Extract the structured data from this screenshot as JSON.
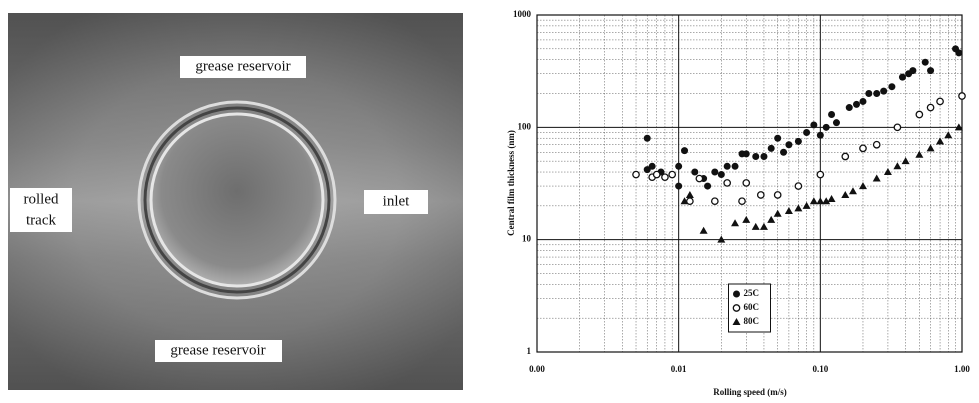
{
  "image": {
    "top_label": "grease reservoir",
    "left_label": [
      "rolled",
      "track"
    ],
    "right_label": "inlet",
    "bottom_label": "grease reservoir"
  },
  "chart_data": {
    "type": "scatter",
    "x_label": "Rolling speed (m/s)",
    "y_label": "Central film thickness (nm)",
    "xscale": "log",
    "yscale": "log",
    "xlim": [
      0.001,
      1
    ],
    "ylim": [
      1,
      1000
    ],
    "xticks": [
      {
        "value": 0.001,
        "label": "0.00"
      },
      {
        "value": 0.01,
        "label": "0.01"
      },
      {
        "value": 0.1,
        "label": "0.10"
      },
      {
        "value": 1,
        "label": "1.00"
      }
    ],
    "yticks": [
      1,
      10,
      100,
      1000
    ],
    "grid": true,
    "legend_location": "lower center",
    "series": [
      {
        "name": "25C",
        "color": "#111111",
        "marker": "filled-circle",
        "x": [
          0.006,
          0.006,
          0.0065,
          0.007,
          0.0075,
          0.01,
          0.01,
          0.011,
          0.013,
          0.015,
          0.016,
          0.018,
          0.02,
          0.022,
          0.025,
          0.028,
          0.03,
          0.035,
          0.04,
          0.045,
          0.05,
          0.055,
          0.06,
          0.07,
          0.08,
          0.09,
          0.1,
          0.11,
          0.12,
          0.13,
          0.16,
          0.18,
          0.2,
          0.22,
          0.25,
          0.28,
          0.32,
          0.38,
          0.42,
          0.45,
          0.55,
          0.6,
          0.9,
          0.95
        ],
        "values": [
          80,
          42,
          45,
          38,
          40,
          30,
          45,
          62,
          40,
          35,
          30,
          40,
          38,
          45,
          45,
          58,
          58,
          55,
          55,
          65,
          80,
          60,
          70,
          75,
          90,
          105,
          85,
          100,
          130,
          110,
          150,
          160,
          170,
          200,
          200,
          210,
          230,
          280,
          300,
          320,
          380,
          320,
          500,
          460
        ]
      },
      {
        "name": "60C",
        "color": "#111111",
        "marker": "open-circle",
        "x": [
          0.005,
          0.0065,
          0.007,
          0.008,
          0.009,
          0.012,
          0.014,
          0.018,
          0.022,
          0.028,
          0.03,
          0.038,
          0.05,
          0.07,
          0.1,
          0.15,
          0.2,
          0.25,
          0.35,
          0.5,
          0.6,
          0.7,
          1.0
        ],
        "values": [
          38,
          36,
          38,
          36,
          38,
          22,
          35,
          22,
          32,
          22,
          32,
          25,
          25,
          30,
          38,
          55,
          65,
          70,
          100,
          130,
          150,
          170,
          190
        ]
      },
      {
        "name": "80C",
        "color": "#111111",
        "marker": "triangle",
        "x": [
          0.011,
          0.012,
          0.015,
          0.02,
          0.025,
          0.03,
          0.035,
          0.04,
          0.045,
          0.05,
          0.06,
          0.07,
          0.08,
          0.09,
          0.1,
          0.11,
          0.12,
          0.15,
          0.17,
          0.2,
          0.25,
          0.3,
          0.35,
          0.4,
          0.5,
          0.6,
          0.7,
          0.8,
          0.95
        ],
        "values": [
          22,
          25,
          12,
          10,
          14,
          15,
          13,
          13,
          15,
          17,
          18,
          19,
          20,
          22,
          22,
          22,
          23,
          25,
          27,
          30,
          35,
          40,
          45,
          50,
          57,
          65,
          75,
          85,
          100
        ]
      }
    ]
  }
}
